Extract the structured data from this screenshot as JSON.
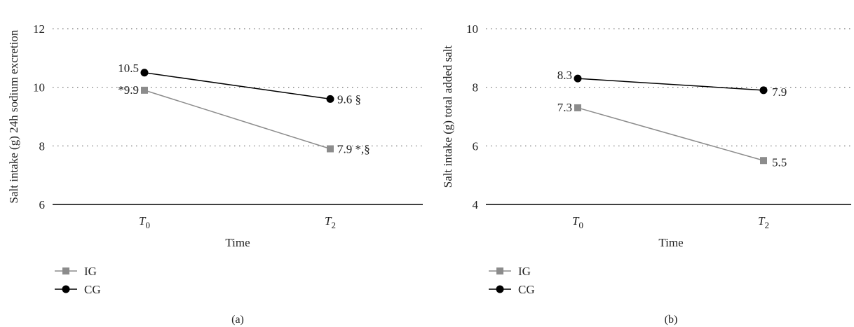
{
  "chart_data": [
    {
      "type": "line",
      "panel_label": "(a)",
      "categories": [
        "T0",
        "T2"
      ],
      "category_labels": [
        {
          "main": "T",
          "sub": "0"
        },
        {
          "main": "T",
          "sub": "2"
        }
      ],
      "xlabel": "Time",
      "ylabel": "Salt intake (g) 24h sodium excretion",
      "ylim": [
        6,
        12
      ],
      "yticks": [
        6,
        8,
        10,
        12
      ],
      "grid": "dotted horizontal",
      "legend_position": "bottom-left",
      "series": [
        {
          "name": "IG",
          "marker": "square",
          "color": "#8c8c8c",
          "values": [
            9.9,
            7.9
          ],
          "labels": [
            "*9.9",
            "7.9 *,§"
          ]
        },
        {
          "name": "CG",
          "marker": "circle",
          "color": "#000000",
          "values": [
            10.5,
            9.6
          ],
          "labels": [
            "10.5",
            "9.6 §"
          ]
        }
      ]
    },
    {
      "type": "line",
      "panel_label": "(b)",
      "categories": [
        "T0",
        "T2"
      ],
      "category_labels": [
        {
          "main": "T",
          "sub": "0"
        },
        {
          "main": "T",
          "sub": "2"
        }
      ],
      "xlabel": "Time",
      "ylabel": "Salt intake (g) total added salt",
      "ylim": [
        4,
        10
      ],
      "yticks": [
        4,
        6,
        8,
        10
      ],
      "grid": "dotted horizontal",
      "legend_position": "bottom-left",
      "series": [
        {
          "name": "IG",
          "marker": "square",
          "color": "#8c8c8c",
          "values": [
            7.3,
            5.5
          ],
          "labels": [
            "7.3",
            "5.5"
          ]
        },
        {
          "name": "CG",
          "marker": "circle",
          "color": "#000000",
          "values": [
            8.3,
            7.9
          ],
          "labels": [
            "8.3",
            "7.9"
          ]
        }
      ]
    }
  ]
}
